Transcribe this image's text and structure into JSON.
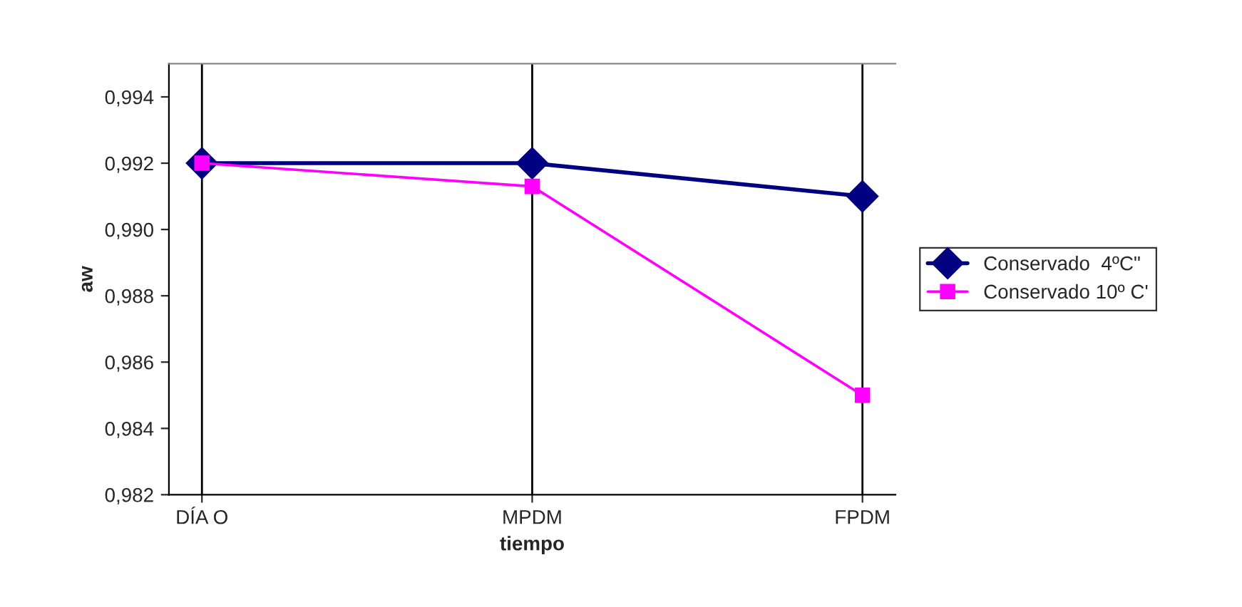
{
  "chart_data": {
    "type": "line",
    "xlabel": "tiempo",
    "ylabel": "aw",
    "categories": [
      "DÍA O",
      "MPDM",
      "FPDM"
    ],
    "series": [
      {
        "name": "Conservado  4ºC\"",
        "color": "#000080",
        "values": [
          0.992,
          0.992,
          0.991
        ],
        "marker": "diamond"
      },
      {
        "name": "Conservado 10º C'",
        "color": "#ff00ff",
        "values": [
          0.992,
          0.9913,
          0.985
        ],
        "marker": "square"
      }
    ],
    "ylim": [
      0.982,
      0.995
    ],
    "yticks": [
      {
        "value": 0.982,
        "label": "0,982"
      },
      {
        "value": 0.984,
        "label": "0,984"
      },
      {
        "value": 0.986,
        "label": "0,986"
      },
      {
        "value": 0.988,
        "label": "0,988"
      },
      {
        "value": 0.99,
        "label": "0,990"
      },
      {
        "value": 0.992,
        "label": "0,992"
      },
      {
        "value": 0.994,
        "label": "0,994"
      }
    ],
    "grid": "x",
    "legend": "right",
    "line_style": "solid"
  }
}
